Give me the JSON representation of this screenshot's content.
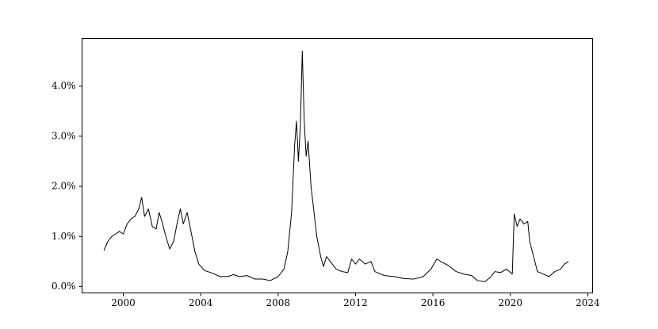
{
  "chart_data": {
    "type": "line",
    "color": "#000000",
    "grid": false,
    "x": [
      1999.0,
      1999.2,
      1999.4,
      1999.6,
      1999.8,
      2000.0,
      2000.2,
      2000.4,
      2000.6,
      2000.8,
      2000.95,
      2001.1,
      2001.3,
      2001.5,
      2001.7,
      2001.85,
      2002.0,
      2002.2,
      2002.4,
      2002.6,
      2002.8,
      2002.95,
      2003.1,
      2003.3,
      2003.5,
      2003.7,
      2003.9,
      2004.2,
      2004.6,
      2005.0,
      2005.4,
      2005.7,
      2006.0,
      2006.4,
      2006.8,
      2007.2,
      2007.6,
      2008.0,
      2008.3,
      2008.5,
      2008.7,
      2008.85,
      2008.95,
      2009.05,
      2009.15,
      2009.25,
      2009.35,
      2009.45,
      2009.55,
      2009.7,
      2009.85,
      2010.0,
      2010.2,
      2010.35,
      2010.5,
      2010.7,
      2011.0,
      2011.3,
      2011.6,
      2011.8,
      2012.0,
      2012.2,
      2012.5,
      2012.8,
      2013.0,
      2013.5,
      2014.0,
      2014.5,
      2015.0,
      2015.5,
      2015.9,
      2016.2,
      2016.5,
      2016.8,
      2017.2,
      2017.6,
      2018.0,
      2018.3,
      2018.7,
      2019.0,
      2019.2,
      2019.5,
      2019.8,
      2020.1,
      2020.2,
      2020.35,
      2020.5,
      2020.7,
      2020.9,
      2021.0,
      2021.2,
      2021.4,
      2021.7,
      2022.0,
      2022.3,
      2022.6,
      2022.8,
      2023.0
    ],
    "values": [
      0.72,
      0.9,
      1.0,
      1.05,
      1.1,
      1.05,
      1.25,
      1.35,
      1.4,
      1.55,
      1.78,
      1.4,
      1.55,
      1.2,
      1.15,
      1.48,
      1.3,
      1.0,
      0.75,
      0.9,
      1.3,
      1.55,
      1.25,
      1.48,
      1.1,
      0.7,
      0.45,
      0.32,
      0.27,
      0.2,
      0.2,
      0.24,
      0.2,
      0.22,
      0.15,
      0.15,
      0.12,
      0.2,
      0.35,
      0.7,
      1.5,
      2.8,
      3.3,
      2.5,
      3.2,
      4.7,
      3.3,
      2.6,
      2.9,
      2.0,
      1.5,
      1.0,
      0.6,
      0.4,
      0.6,
      0.5,
      0.35,
      0.3,
      0.28,
      0.55,
      0.45,
      0.55,
      0.45,
      0.5,
      0.3,
      0.22,
      0.2,
      0.16,
      0.15,
      0.2,
      0.35,
      0.55,
      0.48,
      0.42,
      0.3,
      0.25,
      0.22,
      0.12,
      0.1,
      0.2,
      0.3,
      0.28,
      0.35,
      0.25,
      1.45,
      1.2,
      1.35,
      1.25,
      1.3,
      0.9,
      0.6,
      0.3,
      0.25,
      0.2,
      0.3,
      0.35,
      0.45,
      0.5
    ],
    "xlim": [
      1997.87,
      2024.25
    ],
    "xticks": [
      2000,
      2004,
      2008,
      2012,
      2016,
      2020,
      2024
    ],
    "ylim": [
      -0.126,
      4.95
    ],
    "yticks": [
      {
        "value": 0,
        "label": "0.0%"
      },
      {
        "value": 1,
        "label": "1.0%"
      },
      {
        "value": 2,
        "label": "2.0%"
      },
      {
        "value": 3,
        "label": "3.0%"
      },
      {
        "value": 4,
        "label": "4.0%"
      }
    ]
  }
}
